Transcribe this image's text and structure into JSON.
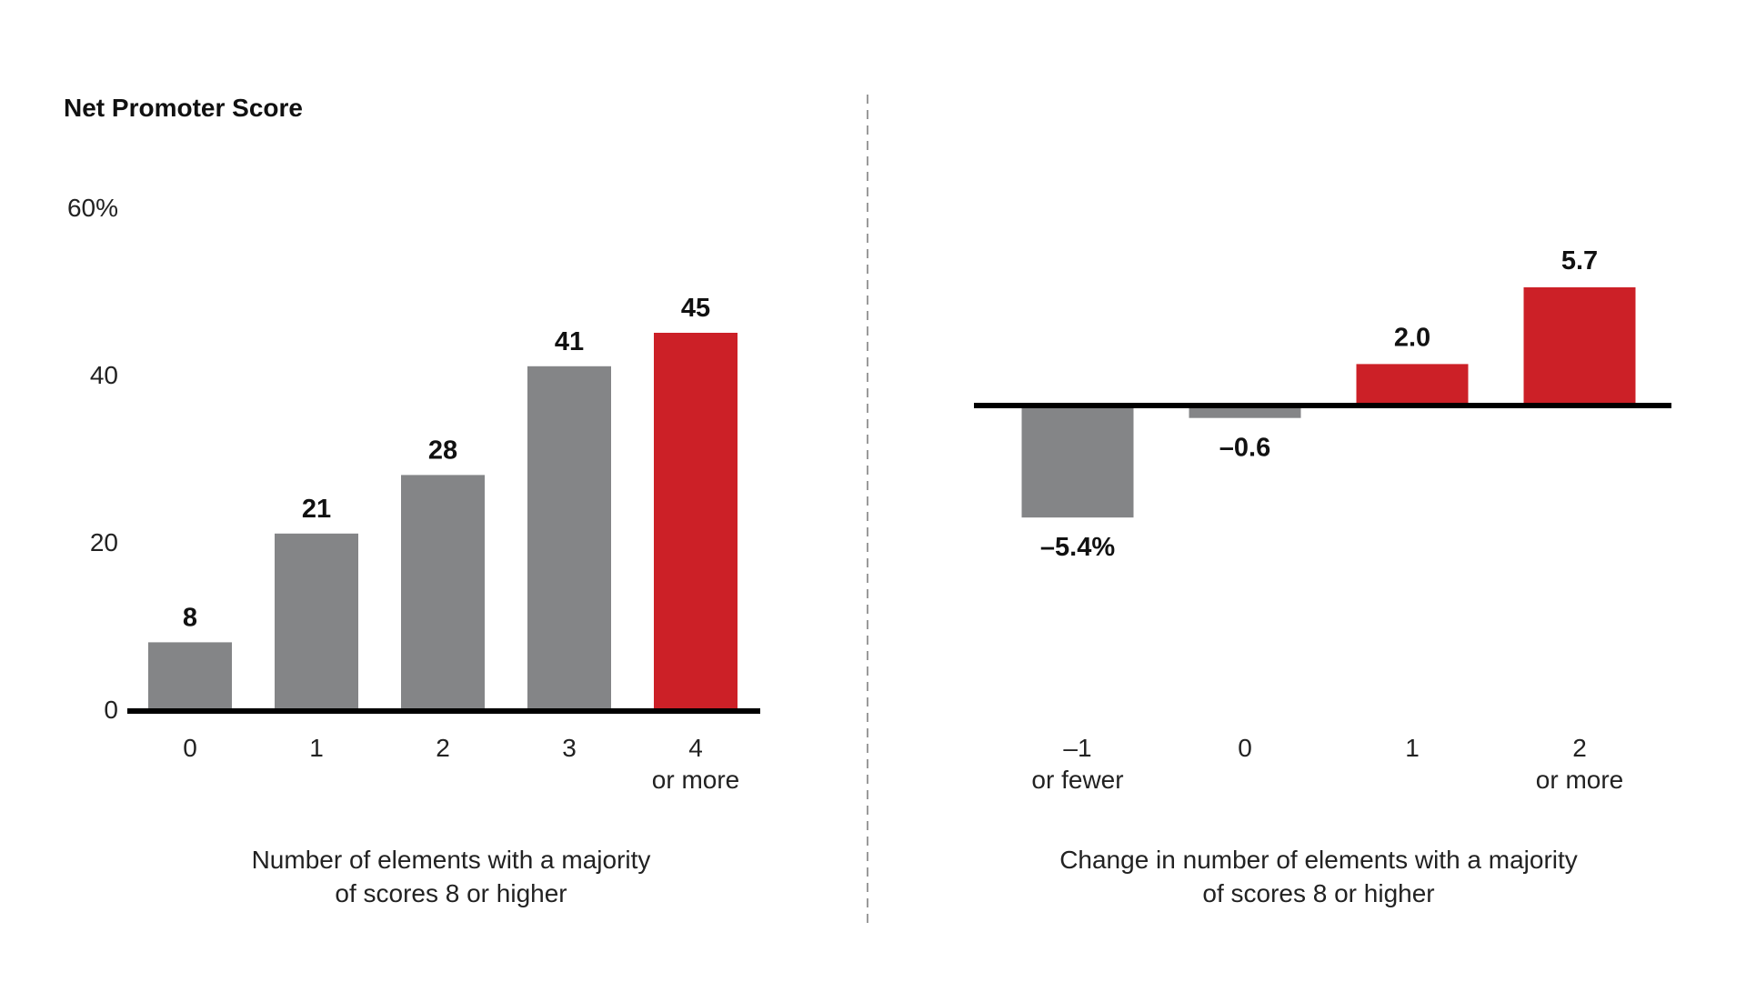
{
  "colors": {
    "gray": "#848587",
    "red": "#CC2027",
    "axis": "#000000",
    "divider": "#9a9a9a"
  },
  "chart_data": [
    {
      "type": "bar",
      "title": "Net Promoter Score",
      "categories": [
        [
          "0"
        ],
        [
          "1"
        ],
        [
          "2"
        ],
        [
          "3"
        ],
        [
          "4",
          "or more"
        ]
      ],
      "values": [
        8,
        21,
        28,
        41,
        45
      ],
      "value_labels": [
        "8",
        "21",
        "28",
        "41",
        "45"
      ],
      "highlight": [
        false,
        false,
        false,
        false,
        true
      ],
      "yticks": [
        "0",
        "20",
        "40",
        "60%"
      ],
      "ytick_values": [
        0,
        20,
        40,
        60
      ],
      "ylim": [
        0,
        60
      ],
      "xlabel": [
        "Number of elements with a majority",
        "of scores 8 or higher"
      ],
      "ylabel": "",
      "grid": false
    },
    {
      "type": "bar",
      "title": "",
      "categories": [
        [
          "–1",
          "or fewer"
        ],
        [
          "0"
        ],
        [
          "1"
        ],
        [
          "2",
          "or more"
        ]
      ],
      "values": [
        -5.4,
        -0.6,
        2.0,
        5.7
      ],
      "value_labels": [
        "–5.4%",
        "–0.6",
        "2.0",
        "5.7"
      ],
      "highlight": [
        false,
        false,
        true,
        true
      ],
      "xlabel": [
        "Change in number of elements with a majority",
        "of scores 8 or higher"
      ],
      "ylabel": "",
      "grid": false
    }
  ]
}
